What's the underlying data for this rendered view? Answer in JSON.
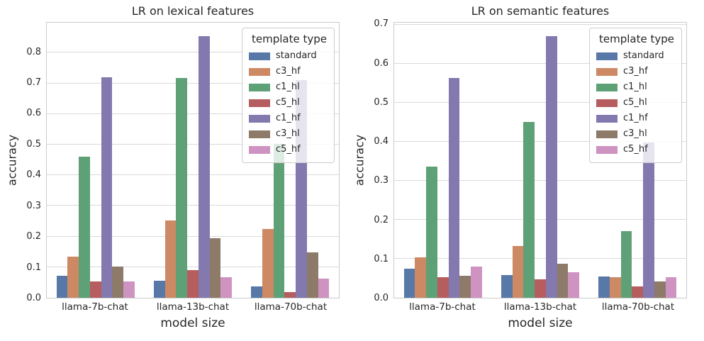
{
  "figure": {
    "background": "#ffffff",
    "grid_color": "#dadada",
    "spine_color": "#cbcbcb",
    "text_color": "#262626"
  },
  "legend": {
    "title": "template type",
    "position": "upper right"
  },
  "chart_data": [
    {
      "type": "bar",
      "title": "LR on lexical features",
      "xlabel": "model size",
      "ylabel": "accuracy",
      "categories": [
        "llama-7b-chat",
        "llama-13b-chat",
        "llama-70b-chat"
      ],
      "series": [
        {
          "name": "standard",
          "color": "#5878a8",
          "values": [
            0.072,
            0.055,
            0.038
          ]
        },
        {
          "name": "c3_hf",
          "color": "#cc8963",
          "values": [
            0.135,
            0.252,
            0.225
          ]
        },
        {
          "name": "c1_hl",
          "color": "#5fa177",
          "values": [
            0.46,
            0.718,
            0.503
          ]
        },
        {
          "name": "c5_hl",
          "color": "#b65d60",
          "values": [
            0.053,
            0.091,
            0.018
          ]
        },
        {
          "name": "c1_hf",
          "color": "#8379ae",
          "values": [
            0.72,
            0.853,
            0.71
          ]
        },
        {
          "name": "c3_hl",
          "color": "#8d7a68",
          "values": [
            0.103,
            0.194,
            0.148
          ]
        },
        {
          "name": "c5_hf",
          "color": "#cf93c2",
          "values": [
            0.053,
            0.066,
            0.062
          ]
        }
      ],
      "ylim": [
        0,
        0.898
      ],
      "yticks": [
        0.0,
        0.1,
        0.2,
        0.3,
        0.4,
        0.5,
        0.6,
        0.7,
        0.8
      ],
      "grid": true,
      "legend_title": "template type",
      "legend_position": "upper right"
    },
    {
      "type": "bar",
      "title": "LR on semantic features",
      "xlabel": "model size",
      "ylabel": "accuracy",
      "categories": [
        "llama-7b-chat",
        "llama-13b-chat",
        "llama-70b-chat"
      ],
      "series": [
        {
          "name": "standard",
          "color": "#5878a8",
          "values": [
            0.075,
            0.058,
            0.055
          ]
        },
        {
          "name": "c3_hf",
          "color": "#cc8963",
          "values": [
            0.103,
            0.133,
            0.053
          ]
        },
        {
          "name": "c1_hl",
          "color": "#5fa177",
          "values": [
            0.336,
            0.452,
            0.171
          ]
        },
        {
          "name": "c5_hl",
          "color": "#b65d60",
          "values": [
            0.053,
            0.048,
            0.03
          ]
        },
        {
          "name": "c1_hf",
          "color": "#8379ae",
          "values": [
            0.565,
            0.671,
            0.398
          ]
        },
        {
          "name": "c3_hl",
          "color": "#8d7a68",
          "values": [
            0.057,
            0.088,
            0.041
          ]
        },
        {
          "name": "c5_hf",
          "color": "#cf93c2",
          "values": [
            0.08,
            0.066,
            0.053
          ]
        }
      ],
      "ylim": [
        0,
        0.706
      ],
      "yticks": [
        0.0,
        0.1,
        0.2,
        0.3,
        0.4,
        0.5,
        0.6,
        0.7
      ],
      "grid": true,
      "legend_title": "template type",
      "legend_position": "upper right"
    }
  ]
}
